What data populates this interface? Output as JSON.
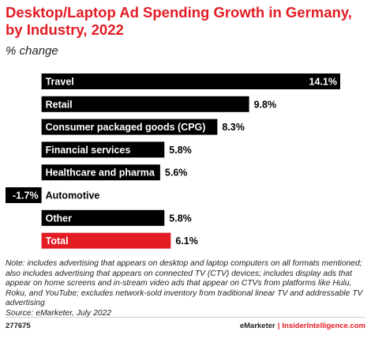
{
  "title": "Desktop/Laptop Ad Spending Growth in Germany, by Industry, 2022",
  "subtitle": "% change",
  "chart_data": {
    "type": "bar",
    "orientation": "horizontal",
    "categories": [
      "Travel",
      "Retail",
      "Consumer packaged goods (CPG)",
      "Financial services",
      "Healthcare and pharma",
      "Automotive",
      "Other",
      "Total"
    ],
    "values": [
      14.1,
      9.8,
      8.3,
      5.8,
      5.6,
      -1.7,
      5.8,
      6.1
    ],
    "value_labels": [
      "14.1%",
      "9.8%",
      "8.3%",
      "5.8%",
      "5.6%",
      "-1.7%",
      "5.8%",
      "6.1%"
    ],
    "xlim": [
      -1.7,
      14.1
    ],
    "colors": [
      "#000000",
      "#000000",
      "#000000",
      "#000000",
      "#000000",
      "#000000",
      "#000000",
      "#e31b23"
    ],
    "grid": false,
    "legend": "none"
  },
  "note": "Note: includes advertising that appears on desktop and laptop computers on all formats mentioned; also includes advertising that appears on connected TV (CTV) devices; includes display ads that appear on home screens and in-stream video ads that appear on CTVs from platforms like Hulu, Roku, and YouTube; excludes network-sold inventory from traditional linear TV and addressable TV advertising",
  "source": "Source: eMarketer, July 2022",
  "footer": {
    "chart_id": "277675",
    "brand": "eMarketer",
    "separator": "|",
    "site": "InsiderIntelligence.com"
  }
}
